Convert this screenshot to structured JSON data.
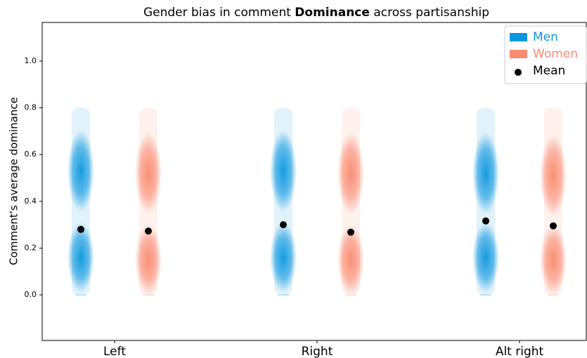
{
  "chart_data": {
    "type": "strip",
    "title_parts": [
      "Gender bias in comment ",
      "Dominance",
      " across partisanship"
    ],
    "ylabel": "Comment's average dominance",
    "categories": [
      "Left",
      "Right",
      "Alt right"
    ],
    "ylim": [
      -0.195,
      1.165
    ],
    "yticks": [
      {
        "value": 0,
        "label": "0.0"
      },
      0.2,
      0.4,
      0.6,
      0.8,
      {
        "value": 1,
        "label": "1.0"
      }
    ],
    "legend": "upper right",
    "mean_name": "Mean",
    "mean_color": "#000000",
    "series": [
      {
        "name": "Men",
        "color": "#0b97de",
        "values": [
          0.28,
          0.3,
          0.316
        ],
        "modes": [
          [
            0.16,
            0.53
          ],
          [
            0.16,
            0.53
          ],
          [
            0.16,
            0.52
          ]
        ]
      },
      {
        "name": "Women",
        "color": "#fa8a70",
        "values": [
          0.273,
          0.268,
          0.295
        ],
        "modes": [
          [
            0.15,
            0.52
          ],
          [
            0.15,
            0.52
          ],
          [
            0.15,
            0.51
          ]
        ]
      }
    ]
  }
}
